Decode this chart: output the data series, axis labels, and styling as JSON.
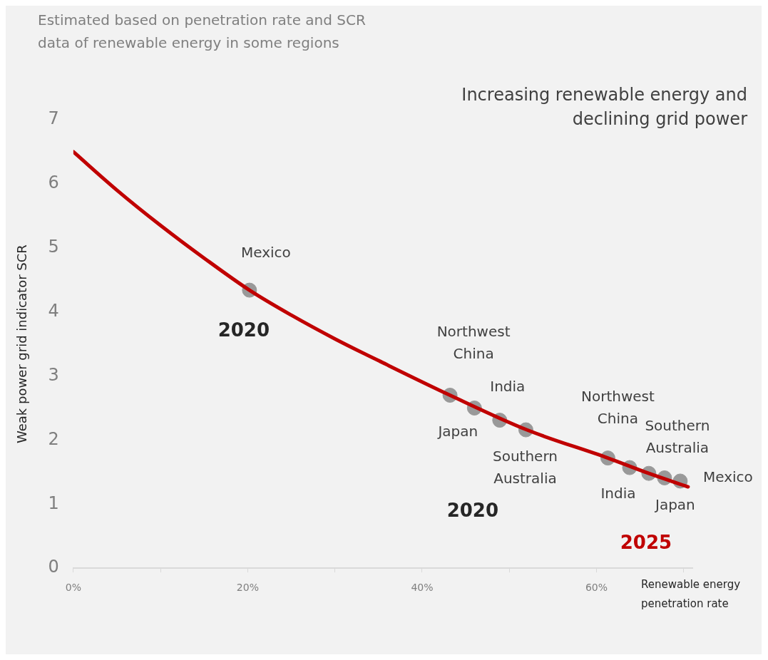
{
  "chart_data": {
    "type": "line",
    "title": "Increasing renewable energy and\ndeclining grid power",
    "subtitle": "Estimated based on penetration rate and SCR\ndata of renewable energy in some regions",
    "xlabel": "Renewable energy\npenetration rate",
    "ylabel": "Weak power grid indicator SCR",
    "xlim": [
      0,
      71
    ],
    "xticks": [
      {
        "value": 0,
        "label": "0%"
      },
      {
        "value": 10,
        "label": null
      },
      {
        "value": 20,
        "label": "20%"
      },
      {
        "value": 30,
        "label": null
      },
      {
        "value": 40,
        "label": "40%"
      },
      {
        "value": 50,
        "label": null
      },
      {
        "value": 60,
        "label": "60%"
      },
      {
        "value": 70,
        "label": null
      }
    ],
    "ylim": [
      0,
      7
    ],
    "yticks": [
      0,
      1,
      2,
      3,
      4,
      5,
      6,
      7
    ],
    "grid": false,
    "legend": false,
    "series": [
      {
        "type": "line",
        "color": "#c00000",
        "marker": "none",
        "line_style": "solid",
        "x": [
          0,
          5,
          10,
          15,
          20.2,
          25,
          30,
          35.9,
          43.2,
          52,
          61.3,
          66,
          70.5
        ],
        "values": [
          6.5,
          5.9,
          5.35,
          4.84,
          4.34,
          3.95,
          3.58,
          3.18,
          2.7,
          2.16,
          1.72,
          1.48,
          1.27
        ]
      },
      {
        "type": "scatter",
        "color": "#999999",
        "marker": "circle",
        "x": [
          20.2,
          43.2,
          46.0,
          48.9,
          51.9
        ],
        "values": [
          4.34,
          2.7,
          2.5,
          2.31,
          2.16
        ]
      },
      {
        "type": "scatter",
        "color": "#999999",
        "marker": "circle",
        "x": [
          61.3,
          63.8,
          66.0,
          67.8,
          69.6
        ],
        "values": [
          1.72,
          1.57,
          1.48,
          1.41,
          1.36
        ]
      }
    ],
    "annotations": [
      {
        "text": "Mexico",
        "x": 20.2,
        "y": 4.34
      },
      {
        "text": "2020",
        "x": 20.2,
        "y": 4.34
      },
      {
        "text": "Northwest\nChina",
        "x": 43.2,
        "y": 2.7
      },
      {
        "text": "India",
        "x": 48.9,
        "y": 2.31
      },
      {
        "text": "Japan",
        "x": 46.0,
        "y": 2.5
      },
      {
        "text": "Southern\nAustralia",
        "x": 51.9,
        "y": 2.16
      },
      "2020",
      {
        "text": "Northwest\nChina",
        "x": 61.3,
        "y": 1.72
      },
      {
        "text": "Southern\nAustralia",
        "x": 66.0,
        "y": 1.48
      },
      {
        "text": "Mexico",
        "x": 69.6,
        "y": 1.36
      },
      {
        "text": "India",
        "x": 63.8,
        "y": 1.57
      },
      {
        "text": "Japan",
        "x": 67.8,
        "y": 1.41
      },
      "2025"
    ]
  }
}
